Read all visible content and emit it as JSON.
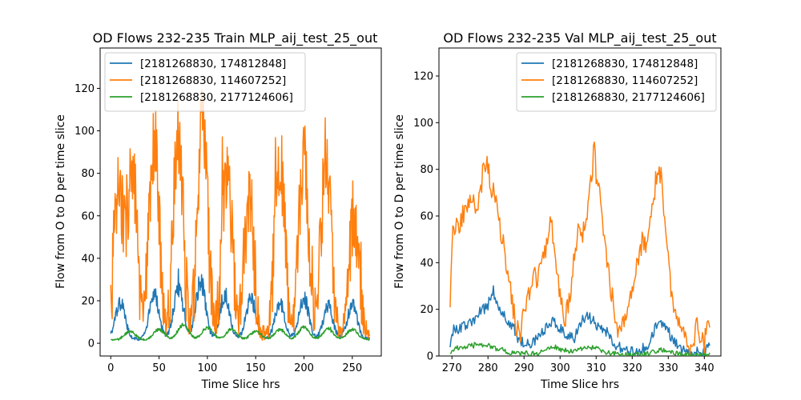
{
  "chart_data": [
    {
      "type": "line",
      "title": "OD Flows 232-235  Train MLP_aij_test_25_out",
      "xlabel": "Time Slice hrs",
      "ylabel": "Flow from O to D per time slice",
      "xlim": [
        -11,
        280
      ],
      "ylim": [
        -6,
        139
      ],
      "xticks": [
        0,
        50,
        100,
        150,
        200,
        250
      ],
      "yticks": [
        0,
        20,
        40,
        60,
        80,
        100,
        120
      ],
      "legend_position": "top-left",
      "x_start": 0,
      "x_step": 0.5,
      "x_end": 268,
      "series": [
        {
          "name": "[2181268830, 174812848]",
          "color": "#1f77b4",
          "shape": {
            "base": 2,
            "peaks": [
              [
                10,
                17
              ],
              [
                45,
                21
              ],
              [
                70,
                24
              ],
              [
                93,
                27
              ],
              [
                118,
                21
              ],
              [
                145,
                19
              ],
              [
                175,
                17
              ],
              [
                200,
                19
              ],
              [
                225,
                15
              ],
              [
                250,
                16
              ]
            ],
            "width": 7,
            "noise": 5
          }
        },
        {
          "name": "[2181268830, 114607252]",
          "color": "#ff7f0e",
          "shape": {
            "base": 4,
            "peaks": [
              [
                8,
                65
              ],
              [
                22,
                78
              ],
              [
                45,
                90
              ],
              [
                70,
                95
              ],
              [
                95,
                105
              ],
              [
                120,
                80
              ],
              [
                143,
                60
              ],
              [
                175,
                82
              ],
              [
                200,
                85
              ],
              [
                223,
                85
              ],
              [
                252,
                55
              ]
            ],
            "width": 7,
            "noise": 20
          }
        },
        {
          "name": "[2181268830, 2177124606]",
          "color": "#2ca02c",
          "shape": {
            "base": 1.5,
            "peaks": [
              [
                20,
                4
              ],
              [
                50,
                5
              ],
              [
                75,
                7
              ],
              [
                100,
                6
              ],
              [
                125,
                5
              ],
              [
                150,
                4
              ],
              [
                175,
                5
              ],
              [
                200,
                6
              ],
              [
                225,
                5
              ],
              [
                250,
                5
              ]
            ],
            "width": 8,
            "noise": 2.5
          }
        }
      ]
    },
    {
      "type": "line",
      "title": "OD Flows 232-235 Val MLP_aij_test_25_out",
      "xlabel": "Time Slice hrs",
      "ylabel": "Flow from O to D per time slice",
      "xlim": [
        266.4,
        344.6
      ],
      "ylim": [
        0,
        132
      ],
      "xticks": [
        270,
        280,
        290,
        300,
        310,
        320,
        330,
        340
      ],
      "yticks": [
        0,
        20,
        40,
        60,
        80,
        100,
        120
      ],
      "legend_position": "top-right",
      "x_start": 269.5,
      "x_step": 0.25,
      "x_end": 341.5,
      "series": [
        {
          "name": "[2181268830, 174812848]",
          "color": "#1f77b4",
          "points": [
            [
              269.5,
              6
            ],
            [
              270.5,
              11
            ],
            [
              272,
              12
            ],
            [
              274,
              13
            ],
            [
              276,
              15
            ],
            [
              278,
              19
            ],
            [
              280,
              22
            ],
            [
              281.5,
              28
            ],
            [
              283,
              20
            ],
            [
              285,
              16
            ],
            [
              287,
              12
            ],
            [
              289,
              6
            ],
            [
              291,
              5
            ],
            [
              293,
              7
            ],
            [
              295,
              10
            ],
            [
              297,
              13
            ],
            [
              298.5,
              15
            ],
            [
              300,
              12
            ],
            [
              302,
              9
            ],
            [
              304,
              8
            ],
            [
              306,
              15
            ],
            [
              308,
              17
            ],
            [
              309.5,
              14
            ],
            [
              311,
              12
            ],
            [
              313,
              10
            ],
            [
              315,
              5
            ],
            [
              317,
              3
            ],
            [
              319,
              2
            ],
            [
              321,
              2
            ],
            [
              323,
              3
            ],
            [
              325,
              6
            ],
            [
              327,
              14
            ],
            [
              329,
              13
            ],
            [
              331,
              8
            ],
            [
              333,
              4
            ],
            [
              335,
              2
            ],
            [
              337,
              1
            ],
            [
              339,
              2
            ],
            [
              341,
              3
            ],
            [
              341.5,
              5
            ]
          ],
          "noise": 2.5
        },
        {
          "name": "[2181268830, 114607252]",
          "color": "#ff7f0e",
          "points": [
            [
              269.5,
              25
            ],
            [
              270,
              50
            ],
            [
              271,
              58
            ],
            [
              272,
              55
            ],
            [
              273,
              60
            ],
            [
              274,
              64
            ],
            [
              275,
              65
            ],
            [
              276,
              65
            ],
            [
              277,
              62
            ],
            [
              278,
              70
            ],
            [
              279,
              85
            ],
            [
              280,
              80
            ],
            [
              281,
              72
            ],
            [
              282,
              70
            ],
            [
              283,
              60
            ],
            [
              284,
              50
            ],
            [
              285,
              40
            ],
            [
              286,
              30
            ],
            [
              287,
              20
            ],
            [
              288,
              12
            ],
            [
              289,
              8
            ],
            [
              290,
              20
            ],
            [
              291,
              25
            ],
            [
              292,
              28
            ],
            [
              293,
              35
            ],
            [
              294,
              33
            ],
            [
              295,
              40
            ],
            [
              296,
              45
            ],
            [
              297,
              58
            ],
            [
              297.5,
              62
            ],
            [
              298,
              52
            ],
            [
              299,
              38
            ],
            [
              300,
              25
            ],
            [
              301,
              15
            ],
            [
              302,
              20
            ],
            [
              303,
              30
            ],
            [
              304,
              42
            ],
            [
              305,
              55
            ],
            [
              306,
              50
            ],
            [
              307,
              55
            ],
            [
              308,
              70
            ],
            [
              309,
              80
            ],
            [
              309.5,
              96
            ],
            [
              310,
              78
            ],
            [
              311,
              70
            ],
            [
              312,
              55
            ],
            [
              313,
              42
            ],
            [
              314,
              30
            ],
            [
              315,
              20
            ],
            [
              316,
              12
            ],
            [
              317,
              10
            ],
            [
              318,
              15
            ],
            [
              319,
              25
            ],
            [
              320,
              30
            ],
            [
              321,
              38
            ],
            [
              322,
              45
            ],
            [
              323,
              50
            ],
            [
              324,
              48
            ],
            [
              325,
              55
            ],
            [
              326,
              68
            ],
            [
              327,
              80
            ],
            [
              328,
              78
            ],
            [
              329,
              60
            ],
            [
              330,
              40
            ],
            [
              331,
              25
            ],
            [
              332,
              18
            ],
            [
              333,
              15
            ],
            [
              334,
              12
            ],
            [
              335,
              8
            ],
            [
              336,
              5
            ],
            [
              337,
              8
            ],
            [
              338,
              12
            ],
            [
              339,
              8
            ],
            [
              340,
              5
            ],
            [
              340.5,
              10
            ],
            [
              341,
              15
            ],
            [
              341.5,
              12
            ]
          ],
          "noise": 5
        },
        {
          "name": "[2181268830, 2177124606]",
          "color": "#2ca02c",
          "points": [
            [
              269.5,
              2
            ],
            [
              271,
              3
            ],
            [
              273,
              4
            ],
            [
              275,
              4
            ],
            [
              277,
              5
            ],
            [
              279,
              5
            ],
            [
              281,
              4
            ],
            [
              283,
              3
            ],
            [
              285,
              2
            ],
            [
              287,
              1
            ],
            [
              289,
              1
            ],
            [
              291,
              1
            ],
            [
              293,
              1
            ],
            [
              295,
              2
            ],
            [
              297,
              3
            ],
            [
              298,
              4
            ],
            [
              300,
              3
            ],
            [
              302,
              2
            ],
            [
              304,
              2
            ],
            [
              306,
              3
            ],
            [
              308,
              4
            ],
            [
              310,
              3
            ],
            [
              312,
              2
            ],
            [
              314,
              1
            ],
            [
              316,
              1
            ],
            [
              318,
              0.5
            ],
            [
              320,
              0.5
            ],
            [
              322,
              0.5
            ],
            [
              324,
              1
            ],
            [
              326,
              2
            ],
            [
              328,
              3
            ],
            [
              330,
              2
            ],
            [
              332,
              1
            ],
            [
              334,
              0.5
            ],
            [
              336,
              0.3
            ],
            [
              338,
              0.3
            ],
            [
              340,
              0.5
            ],
            [
              341.5,
              1
            ]
          ],
          "noise": 1.2
        }
      ]
    }
  ]
}
